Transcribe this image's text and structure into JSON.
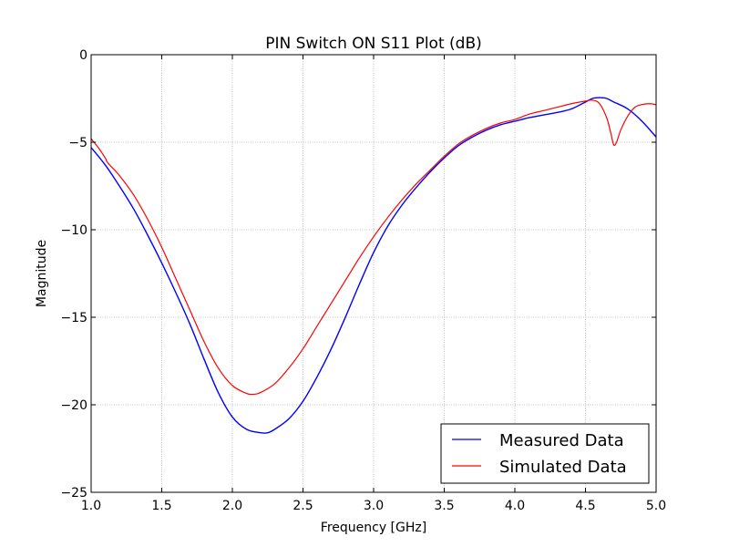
{
  "chart_data": {
    "type": "line",
    "title": "PIN Switch ON S11 Plot (dB)",
    "xlabel": "Frequency [GHz]",
    "ylabel": "Magnitude",
    "xlim": [
      1.0,
      5.0
    ],
    "ylim": [
      -25,
      0
    ],
    "xticks": [
      1.0,
      1.5,
      2.0,
      2.5,
      3.0,
      3.5,
      4.0,
      4.5,
      5.0
    ],
    "xtick_labels": [
      "1.0",
      "1.5",
      "2.0",
      "2.5",
      "3.0",
      "3.5",
      "4.0",
      "4.5",
      "5.0"
    ],
    "yticks": [
      0,
      -5,
      -10,
      -15,
      -20,
      -25
    ],
    "ytick_labels": [
      "0",
      "−5",
      "−10",
      "−15",
      "−20",
      "−25"
    ],
    "grid": true,
    "legend_position": "bottom-right",
    "series": [
      {
        "name": "Measured Data",
        "color": "#0000ff",
        "x": [
          1.0,
          1.1,
          1.2,
          1.3,
          1.4,
          1.5,
          1.6,
          1.7,
          1.8,
          1.9,
          2.0,
          2.1,
          2.2,
          2.25,
          2.3,
          2.4,
          2.5,
          2.6,
          2.7,
          2.8,
          2.9,
          3.0,
          3.1,
          3.2,
          3.3,
          3.4,
          3.5,
          3.6,
          3.7,
          3.8,
          3.9,
          4.0,
          4.1,
          4.2,
          4.3,
          4.4,
          4.5,
          4.55,
          4.6,
          4.65,
          4.7,
          4.8,
          4.9,
          5.0
        ],
        "y": [
          -5.3,
          -6.3,
          -7.5,
          -8.8,
          -10.3,
          -11.9,
          -13.6,
          -15.4,
          -17.4,
          -19.3,
          -20.7,
          -21.4,
          -21.6,
          -21.6,
          -21.4,
          -20.8,
          -19.8,
          -18.4,
          -16.8,
          -15.0,
          -13.1,
          -11.3,
          -9.8,
          -8.6,
          -7.6,
          -6.7,
          -5.9,
          -5.2,
          -4.7,
          -4.3,
          -4.0,
          -3.8,
          -3.6,
          -3.45,
          -3.3,
          -3.1,
          -2.7,
          -2.5,
          -2.45,
          -2.5,
          -2.7,
          -3.1,
          -3.8,
          -4.7
        ]
      },
      {
        "name": "Simulated Data",
        "color": "#ff0000",
        "x": [
          1.0,
          1.05,
          1.1,
          1.12,
          1.2,
          1.3,
          1.4,
          1.5,
          1.6,
          1.7,
          1.8,
          1.9,
          2.0,
          2.1,
          2.15,
          2.2,
          2.3,
          2.4,
          2.5,
          2.6,
          2.7,
          2.8,
          2.9,
          3.0,
          3.1,
          3.2,
          3.3,
          3.4,
          3.5,
          3.6,
          3.7,
          3.8,
          3.9,
          4.0,
          4.1,
          4.2,
          4.3,
          4.4,
          4.5,
          4.55,
          4.6,
          4.65,
          4.68,
          4.7,
          4.72,
          4.75,
          4.8,
          4.85,
          4.9,
          4.95,
          5.0
        ],
        "y": [
          -4.8,
          -5.3,
          -5.9,
          -6.2,
          -6.9,
          -8.0,
          -9.4,
          -11.0,
          -12.8,
          -14.6,
          -16.4,
          -17.9,
          -18.9,
          -19.35,
          -19.4,
          -19.3,
          -18.8,
          -17.9,
          -16.8,
          -15.5,
          -14.2,
          -12.9,
          -11.6,
          -10.4,
          -9.3,
          -8.3,
          -7.4,
          -6.6,
          -5.8,
          -5.1,
          -4.6,
          -4.2,
          -3.9,
          -3.7,
          -3.4,
          -3.2,
          -3.0,
          -2.8,
          -2.65,
          -2.6,
          -2.8,
          -3.6,
          -4.5,
          -5.15,
          -5.0,
          -4.3,
          -3.5,
          -3.0,
          -2.85,
          -2.8,
          -2.85
        ]
      }
    ]
  }
}
